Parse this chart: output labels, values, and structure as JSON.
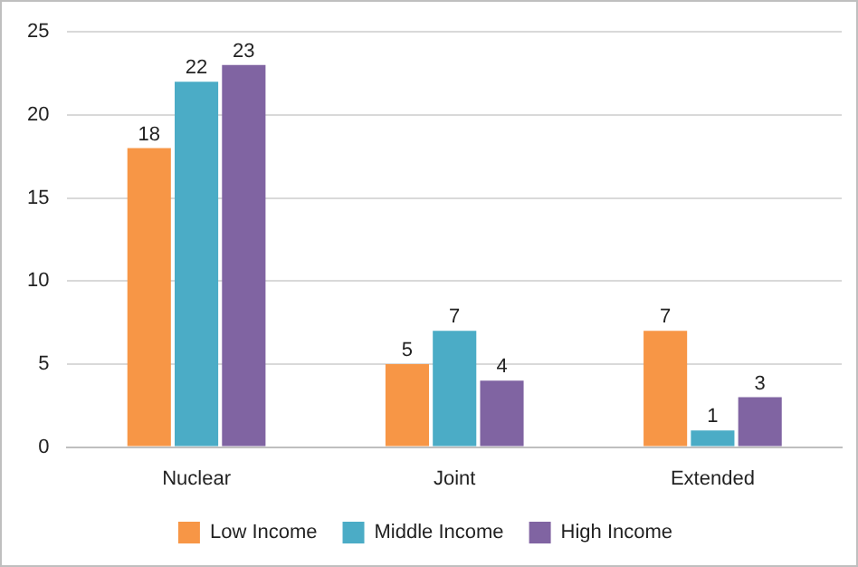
{
  "chart_data": {
    "type": "bar",
    "categories": [
      "Nuclear",
      "Joint",
      "Extended"
    ],
    "series": [
      {
        "name": "Low Income",
        "color": "#f79646",
        "values": [
          18,
          5,
          7
        ]
      },
      {
        "name": "Middle Income",
        "color": "#4bacc6",
        "values": [
          22,
          7,
          1
        ]
      },
      {
        "name": "High Income",
        "color": "#8064a2",
        "values": [
          23,
          4,
          3
        ]
      }
    ],
    "ylim": [
      0,
      25
    ],
    "yticks": [
      0,
      5,
      10,
      15,
      20,
      25
    ],
    "grid": "y",
    "legend": "bottom",
    "data_labels": true
  }
}
